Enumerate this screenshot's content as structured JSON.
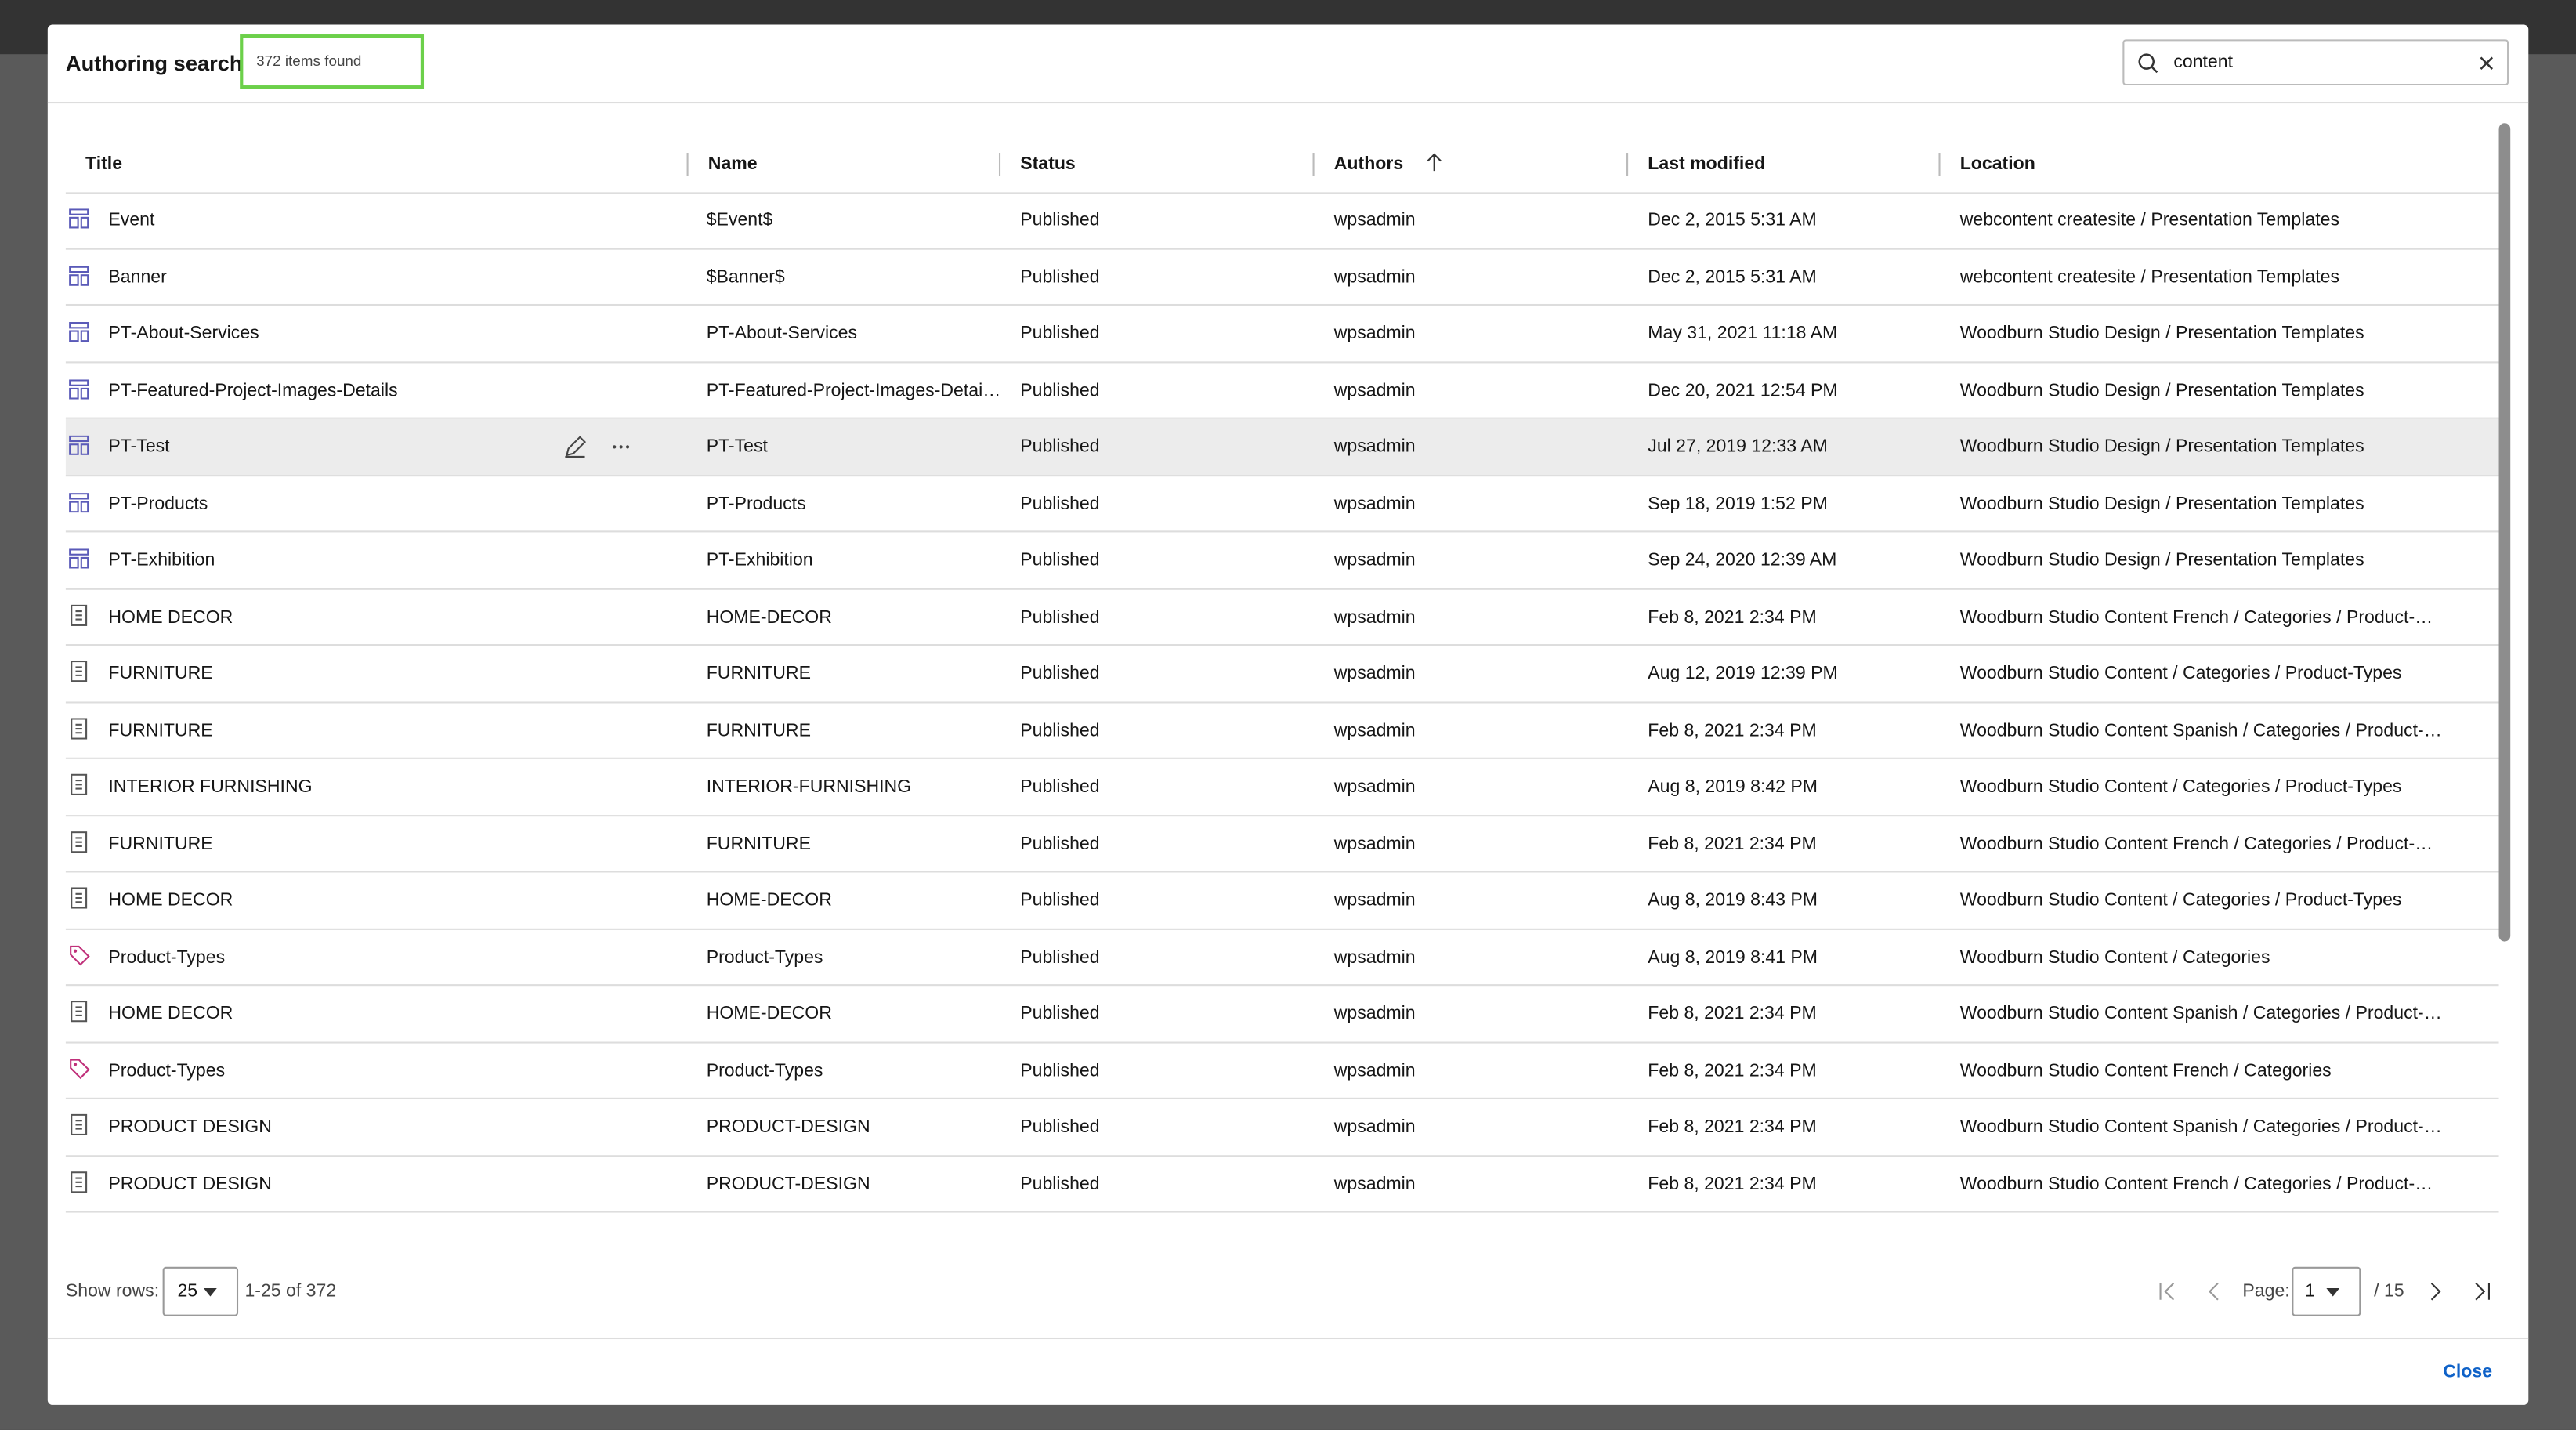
{
  "header": {
    "title": "Authoring search",
    "count": "372 items found"
  },
  "search": {
    "value": "content"
  },
  "table": {
    "columns": [
      "Title",
      "Name",
      "Status",
      "Authors",
      "Last modified",
      "Location"
    ],
    "rows": [
      [
        "Event",
        "$Event$",
        "Published",
        "wpsadmin",
        "Dec 2, 2015 5:31 AM",
        "webcontent createsite / Presentation Templates"
      ],
      [
        "Banner",
        "$Banner$",
        "Published",
        "wpsadmin",
        "Dec 2, 2015 5:31 AM",
        "webcontent createsite / Presentation Templates"
      ],
      [
        "PT-About-Services",
        "PT-About-Services",
        "Published",
        "wpsadmin",
        "May 31, 2021 11:18 AM",
        "Woodburn Studio Design / Presentation Templates"
      ],
      [
        "PT-Featured-Project-Images-Details",
        "PT-Featured-Project-Images-Detai…",
        "Published",
        "wpsadmin",
        "Dec 20, 2021 12:54 PM",
        "Woodburn Studio Design / Presentation Templates"
      ],
      [
        "PT-Test",
        "PT-Test",
        "Published",
        "wpsadmin",
        "Jul 27, 2019 12:33 AM",
        "Woodburn Studio Design / Presentation Templates"
      ],
      [
        "PT-Products",
        "PT-Products",
        "Published",
        "wpsadmin",
        "Sep 18, 2019 1:52 PM",
        "Woodburn Studio Design / Presentation Templates"
      ],
      [
        "PT-Exhibition",
        "PT-Exhibition",
        "Published",
        "wpsadmin",
        "Sep 24, 2020 12:39 AM",
        "Woodburn Studio Design / Presentation Templates"
      ],
      [
        "HOME DECOR",
        "HOME-DECOR",
        "Published",
        "wpsadmin",
        "Feb 8, 2021 2:34 PM",
        "Woodburn Studio Content French / Categories / Product-…"
      ],
      [
        "FURNITURE",
        "FURNITURE",
        "Published",
        "wpsadmin",
        "Aug 12, 2019 12:39 PM",
        "Woodburn Studio Content / Categories / Product-Types"
      ],
      [
        "FURNITURE",
        "FURNITURE",
        "Published",
        "wpsadmin",
        "Feb 8, 2021 2:34 PM",
        "Woodburn Studio Content Spanish / Categories / Product-…"
      ],
      [
        "INTERIOR FURNISHING",
        "INTERIOR-FURNISHING",
        "Published",
        "wpsadmin",
        "Aug 8, 2019 8:42 PM",
        "Woodburn Studio Content / Categories / Product-Types"
      ],
      [
        "FURNITURE",
        "FURNITURE",
        "Published",
        "wpsadmin",
        "Feb 8, 2021 2:34 PM",
        "Woodburn Studio Content French / Categories / Product-…"
      ],
      [
        "HOME DECOR",
        "HOME-DECOR",
        "Published",
        "wpsadmin",
        "Aug 8, 2019 8:43 PM",
        "Woodburn Studio Content / Categories / Product-Types"
      ],
      [
        "Product-Types",
        "Product-Types",
        "Published",
        "wpsadmin",
        "Aug 8, 2019 8:41 PM",
        "Woodburn Studio Content / Categories"
      ],
      [
        "HOME DECOR",
        "HOME-DECOR",
        "Published",
        "wpsadmin",
        "Feb 8, 2021 2:34 PM",
        "Woodburn Studio Content Spanish / Categories / Product-…"
      ],
      [
        "Product-Types",
        "Product-Types",
        "Published",
        "wpsadmin",
        "Feb 8, 2021 2:34 PM",
        "Woodburn Studio Content French / Categories"
      ],
      [
        "PRODUCT DESIGN",
        "PRODUCT-DESIGN",
        "Published",
        "wpsadmin",
        "Feb 8, 2021 2:34 PM",
        "Woodburn Studio Content Spanish / Categories / Product-…"
      ],
      [
        "PRODUCT DESIGN",
        "PRODUCT-DESIGN",
        "Published",
        "wpsadmin",
        "Feb 8, 2021 2:34 PM",
        "Woodburn Studio Content French / Categories / Product-…"
      ]
    ]
  },
  "footer": {
    "show_rows_label": "Show rows:",
    "rows_per_page": "25",
    "range": "1-25 of 372",
    "page_label": "Page:",
    "page": "1",
    "total_pages": "/ 15",
    "close": "Close"
  }
}
